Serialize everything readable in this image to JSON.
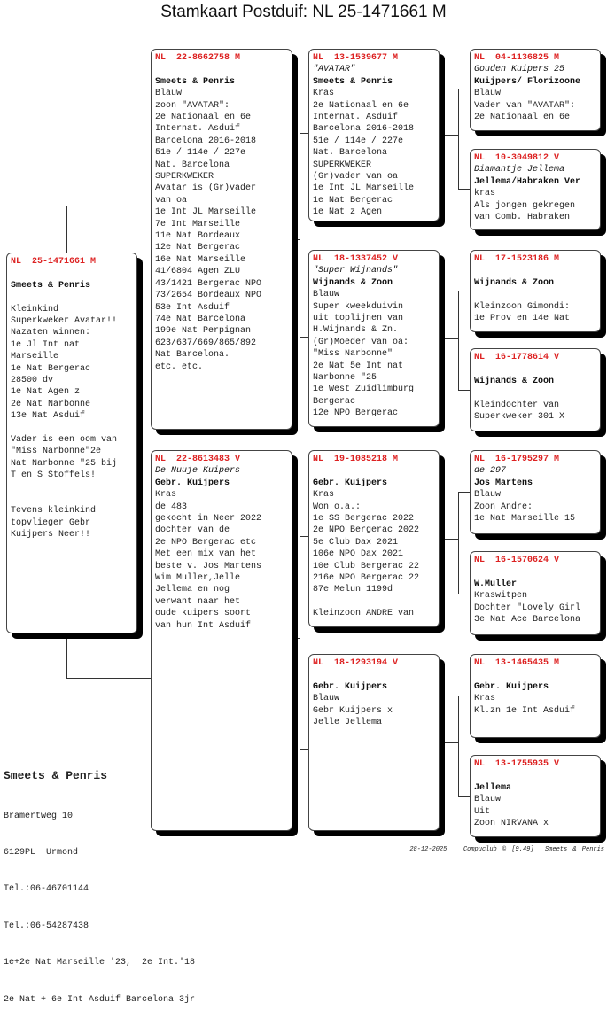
{
  "title": "Stamkaart Postduif: NL  25-1471661 M",
  "colors": {
    "ring": "#dd2222",
    "text": "#222222",
    "shadow": "#000000"
  },
  "boxes": [
    {
      "id": "subject",
      "lines": [
        {
          "t": "NL  25-1471661 M",
          "s": "ring"
        },
        {
          "t": "",
          "s": ""
        },
        {
          "t": "Smeets & Penris",
          "s": "b"
        },
        {
          "t": "",
          "s": ""
        },
        {
          "t": "Kleinkind",
          "s": ""
        },
        {
          "t": "Superkweker Avatar!!",
          "s": ""
        },
        {
          "t": "Nazaten winnen:",
          "s": ""
        },
        {
          "t": "1e Jl Int nat",
          "s": ""
        },
        {
          "t": "Marseille",
          "s": ""
        },
        {
          "t": "1e Nat Bergerac",
          "s": ""
        },
        {
          "t": "28500 dv",
          "s": ""
        },
        {
          "t": "1e Nat Agen z",
          "s": ""
        },
        {
          "t": "2e Nat Narbonne",
          "s": ""
        },
        {
          "t": "13e Nat Asduif",
          "s": ""
        },
        {
          "t": "",
          "s": ""
        },
        {
          "t": "Vader is een oom van",
          "s": ""
        },
        {
          "t": "\"Miss Narbonne\"2e",
          "s": ""
        },
        {
          "t": "Nat Narbonne \"25 bij",
          "s": ""
        },
        {
          "t": "T en S Stoffels!",
          "s": ""
        },
        {
          "t": "",
          "s": ""
        },
        {
          "t": "",
          "s": ""
        },
        {
          "t": "Tevens kleinkind",
          "s": ""
        },
        {
          "t": "topvlieger Gebr",
          "s": ""
        },
        {
          "t": "Kuijpers Neer!!",
          "s": ""
        }
      ]
    },
    {
      "id": "father",
      "lines": [
        {
          "t": "NL  22-8662758 M",
          "s": "ring"
        },
        {
          "t": "",
          "s": ""
        },
        {
          "t": "Smeets & Penris",
          "s": "b"
        },
        {
          "t": "Blauw",
          "s": ""
        },
        {
          "t": "zoon \"AVATAR\":",
          "s": ""
        },
        {
          "t": "2e Nationaal en 6e",
          "s": ""
        },
        {
          "t": "Internat. Asduif",
          "s": ""
        },
        {
          "t": "Barcelona 2016-2018",
          "s": ""
        },
        {
          "t": "51e / 114e / 227e",
          "s": ""
        },
        {
          "t": "Nat. Barcelona",
          "s": ""
        },
        {
          "t": "SUPERKWEKER",
          "s": ""
        },
        {
          "t": "Avatar is (Gr)vader",
          "s": ""
        },
        {
          "t": "van oa",
          "s": ""
        },
        {
          "t": "1e Int JL Marseille",
          "s": ""
        },
        {
          "t": "7e Int Marseille",
          "s": ""
        },
        {
          "t": "11e Nat Bordeaux",
          "s": ""
        },
        {
          "t": "12e Nat Bergerac",
          "s": ""
        },
        {
          "t": "16e Nat Marseille",
          "s": ""
        },
        {
          "t": "41/6804 Agen ZLU",
          "s": ""
        },
        {
          "t": "43/1421 Bergerac NPO",
          "s": ""
        },
        {
          "t": "73/2654 Bordeaux NPO",
          "s": ""
        },
        {
          "t": "53e Int Asduif",
          "s": ""
        },
        {
          "t": "74e Nat Barcelona",
          "s": ""
        },
        {
          "t": "199e Nat Perpignan",
          "s": ""
        },
        {
          "t": "623/637/669/865/892",
          "s": ""
        },
        {
          "t": "Nat Barcelona.",
          "s": ""
        },
        {
          "t": "etc. etc.",
          "s": ""
        }
      ]
    },
    {
      "id": "mother",
      "lines": [
        {
          "t": "NL  22-8613483 V",
          "s": "ring"
        },
        {
          "t": "De Nuuje Kuipers",
          "s": "i"
        },
        {
          "t": "Gebr. Kuijpers",
          "s": "b"
        },
        {
          "t": "Kras",
          "s": ""
        },
        {
          "t": "de 483",
          "s": ""
        },
        {
          "t": "gekocht in Neer 2022",
          "s": ""
        },
        {
          "t": "dochter van de",
          "s": ""
        },
        {
          "t": "2e NPO Bergerac etc",
          "s": ""
        },
        {
          "t": "Met een mix van het",
          "s": ""
        },
        {
          "t": "beste v. Jos Martens",
          "s": ""
        },
        {
          "t": "Wim Muller,Jelle",
          "s": ""
        },
        {
          "t": "Jellema en nog",
          "s": ""
        },
        {
          "t": "verwant naar het",
          "s": ""
        },
        {
          "t": "oude kuipers soort",
          "s": ""
        },
        {
          "t": "van hun Int Asduif",
          "s": ""
        }
      ]
    },
    {
      "id": "ff",
      "lines": [
        {
          "t": "NL  13-1539677 M",
          "s": "ring"
        },
        {
          "t": "\"AVATAR\"",
          "s": "i"
        },
        {
          "t": "Smeets & Penris",
          "s": "b"
        },
        {
          "t": "Kras",
          "s": ""
        },
        {
          "t": "2e Nationaal en 6e",
          "s": ""
        },
        {
          "t": "Internat. Asduif",
          "s": ""
        },
        {
          "t": "Barcelona 2016-2018",
          "s": ""
        },
        {
          "t": "51e / 114e / 227e",
          "s": ""
        },
        {
          "t": "Nat. Barcelona",
          "s": ""
        },
        {
          "t": "SUPERKWEKER",
          "s": ""
        },
        {
          "t": "(Gr)vader van oa",
          "s": ""
        },
        {
          "t": "1e Int JL Marseille",
          "s": ""
        },
        {
          "t": "1e Nat Bergerac",
          "s": ""
        },
        {
          "t": "1e Nat z Agen",
          "s": ""
        }
      ]
    },
    {
      "id": "fm",
      "lines": [
        {
          "t": "NL  18-1337452 V",
          "s": "ring"
        },
        {
          "t": "\"Super Wijnands\"",
          "s": "i"
        },
        {
          "t": "Wijnands & Zoon",
          "s": "b"
        },
        {
          "t": "Blauw",
          "s": ""
        },
        {
          "t": "Super kweekduivin",
          "s": ""
        },
        {
          "t": "uit toplijnen van",
          "s": ""
        },
        {
          "t": "H.Wijnands & Zn.",
          "s": ""
        },
        {
          "t": "(Gr)Moeder van oa:",
          "s": ""
        },
        {
          "t": "\"Miss Narbonne\"",
          "s": ""
        },
        {
          "t": "2e Nat 5e Int nat",
          "s": ""
        },
        {
          "t": "Narbonne \"25",
          "s": ""
        },
        {
          "t": "1e West Zuidlimburg",
          "s": ""
        },
        {
          "t": "Bergerac",
          "s": ""
        },
        {
          "t": "12e NPO Bergerac",
          "s": ""
        }
      ]
    },
    {
      "id": "mf",
      "lines": [
        {
          "t": "NL  19-1085218 M",
          "s": "ring"
        },
        {
          "t": "",
          "s": ""
        },
        {
          "t": "Gebr. Kuijpers",
          "s": "b"
        },
        {
          "t": "Kras",
          "s": ""
        },
        {
          "t": "Won o.a.:",
          "s": ""
        },
        {
          "t": "1e SS Bergerac 2022",
          "s": ""
        },
        {
          "t": "2e NPO Bergerac 2022",
          "s": ""
        },
        {
          "t": "5e Club Dax 2021",
          "s": ""
        },
        {
          "t": "106e NPO Dax 2021",
          "s": ""
        },
        {
          "t": "10e Club Bergerac 22",
          "s": ""
        },
        {
          "t": "216e NPO Bergerac 22",
          "s": ""
        },
        {
          "t": "87e Melun 1199d",
          "s": ""
        },
        {
          "t": "",
          "s": ""
        },
        {
          "t": "Kleinzoon ANDRE van",
          "s": ""
        }
      ]
    },
    {
      "id": "mm",
      "lines": [
        {
          "t": "NL  18-1293194 V",
          "s": "ring"
        },
        {
          "t": "",
          "s": ""
        },
        {
          "t": "Gebr. Kuijpers",
          "s": "b"
        },
        {
          "t": "Blauw",
          "s": ""
        },
        {
          "t": "Gebr Kuijpers x",
          "s": ""
        },
        {
          "t": "Jelle Jellema",
          "s": ""
        }
      ]
    },
    {
      "id": "fff",
      "lines": [
        {
          "t": "NL  04-1136825 M",
          "s": "ring"
        },
        {
          "t": "Gouden Kuipers 25",
          "s": "i"
        },
        {
          "t": "Kuijpers/ Florizoone",
          "s": "b"
        },
        {
          "t": "Blauw",
          "s": ""
        },
        {
          "t": "Vader van \"AVATAR\":",
          "s": ""
        },
        {
          "t": "2e Nationaal en 6e",
          "s": ""
        }
      ]
    },
    {
      "id": "ffm",
      "lines": [
        {
          "t": "NL  10-3049812 V",
          "s": "ring"
        },
        {
          "t": "Diamantje Jellema",
          "s": "i"
        },
        {
          "t": "Jellema/Habraken Ver",
          "s": "b"
        },
        {
          "t": "kras",
          "s": ""
        },
        {
          "t": "Als jongen gekregen",
          "s": ""
        },
        {
          "t": "van Comb. Habraken",
          "s": ""
        }
      ]
    },
    {
      "id": "fmf",
      "lines": [
        {
          "t": "NL  17-1523186 M",
          "s": "ring"
        },
        {
          "t": "",
          "s": ""
        },
        {
          "t": "Wijnands & Zoon",
          "s": "b"
        },
        {
          "t": "",
          "s": ""
        },
        {
          "t": "Kleinzoon Gimondi:",
          "s": ""
        },
        {
          "t": "1e Prov en 14e Nat",
          "s": ""
        }
      ]
    },
    {
      "id": "fmm",
      "lines": [
        {
          "t": "NL  16-1778614 V",
          "s": "ring"
        },
        {
          "t": "",
          "s": ""
        },
        {
          "t": "Wijnands & Zoon",
          "s": "b"
        },
        {
          "t": "",
          "s": ""
        },
        {
          "t": "Kleindochter van",
          "s": ""
        },
        {
          "t": "Superkweker 301 X",
          "s": ""
        }
      ]
    },
    {
      "id": "mff",
      "lines": [
        {
          "t": "NL  16-1795297 M",
          "s": "ring"
        },
        {
          "t": "de 297",
          "s": "i"
        },
        {
          "t": "Jos Martens",
          "s": "b"
        },
        {
          "t": "Blauw",
          "s": ""
        },
        {
          "t": "Zoon Andre:",
          "s": ""
        },
        {
          "t": "1e Nat Marseille 15",
          "s": ""
        }
      ]
    },
    {
      "id": "mfm",
      "lines": [
        {
          "t": "NL  16-1570624 V",
          "s": "ring"
        },
        {
          "t": "",
          "s": ""
        },
        {
          "t": "W.Muller",
          "s": "b"
        },
        {
          "t": "Kraswitpen",
          "s": ""
        },
        {
          "t": "Dochter \"Lovely Girl",
          "s": ""
        },
        {
          "t": "3e Nat Ace Barcelona",
          "s": ""
        }
      ]
    },
    {
      "id": "mmf",
      "lines": [
        {
          "t": "NL  13-1465435 M",
          "s": "ring"
        },
        {
          "t": "",
          "s": ""
        },
        {
          "t": "Gebr. Kuijpers",
          "s": "b"
        },
        {
          "t": "Kras",
          "s": ""
        },
        {
          "t": "Kl.zn 1e Int Asduif",
          "s": ""
        }
      ]
    },
    {
      "id": "mmm",
      "lines": [
        {
          "t": "NL  13-1755935 V",
          "s": "ring"
        },
        {
          "t": "",
          "s": ""
        },
        {
          "t": "Jellema",
          "s": "b"
        },
        {
          "t": "Blauw",
          "s": ""
        },
        {
          "t": "Uit",
          "s": ""
        },
        {
          "t": "Zoon NIRVANA x",
          "s": ""
        }
      ]
    }
  ],
  "footer": {
    "owner": "Smeets & Penris",
    "address": [
      "Bramertweg 10",
      "6129PL  Urmond",
      "Tel.:06-46701144",
      "Tel.:06-54287438",
      "1e+2e Nat Marseille '23,  2e Int.'18",
      "2e Nat + 6e Int Asduif Barcelona 3jr"
    ],
    "date": "28-12-2025",
    "software": "Compuclub © [9.49]",
    "breeder": "Smeets & Penris"
  }
}
